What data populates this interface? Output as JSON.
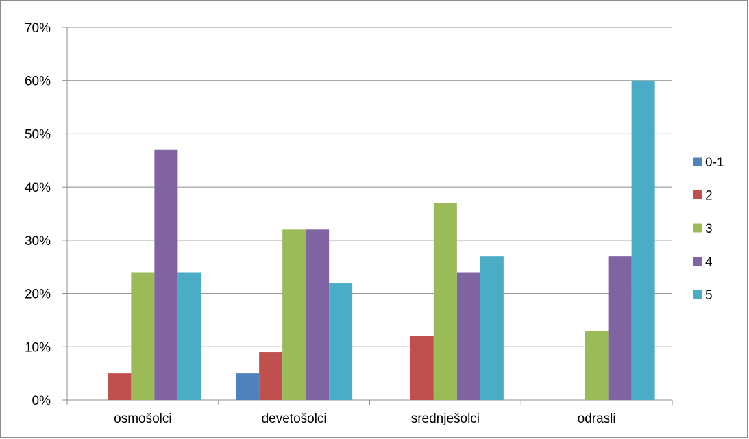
{
  "chart_data": {
    "type": "bar",
    "title": "",
    "xlabel": "",
    "ylabel": "",
    "categories": [
      "osmošolci",
      "devetošolci",
      "srednješolci",
      "odrasli"
    ],
    "series": [
      {
        "name": "0-1",
        "color": "#4F81BD",
        "values": [
          0,
          5,
          0,
          0
        ]
      },
      {
        "name": "2",
        "color": "#C0504D",
        "values": [
          5,
          9,
          12,
          0
        ]
      },
      {
        "name": "3",
        "color": "#9BBB59",
        "values": [
          24,
          32,
          37,
          13
        ]
      },
      {
        "name": "4",
        "color": "#8064A2",
        "values": [
          47,
          32,
          24,
          27
        ]
      },
      {
        "name": "5",
        "color": "#4BACC6",
        "values": [
          24,
          22,
          27,
          60
        ]
      }
    ],
    "ylim": [
      0,
      70
    ],
    "yticks": [
      0,
      10,
      20,
      30,
      40,
      50,
      60,
      70
    ],
    "ytick_labels": [
      "0%",
      "10%",
      "20%",
      "30%",
      "40%",
      "50%",
      "60%",
      "70%"
    ],
    "grid": true,
    "legend_position": "right"
  }
}
